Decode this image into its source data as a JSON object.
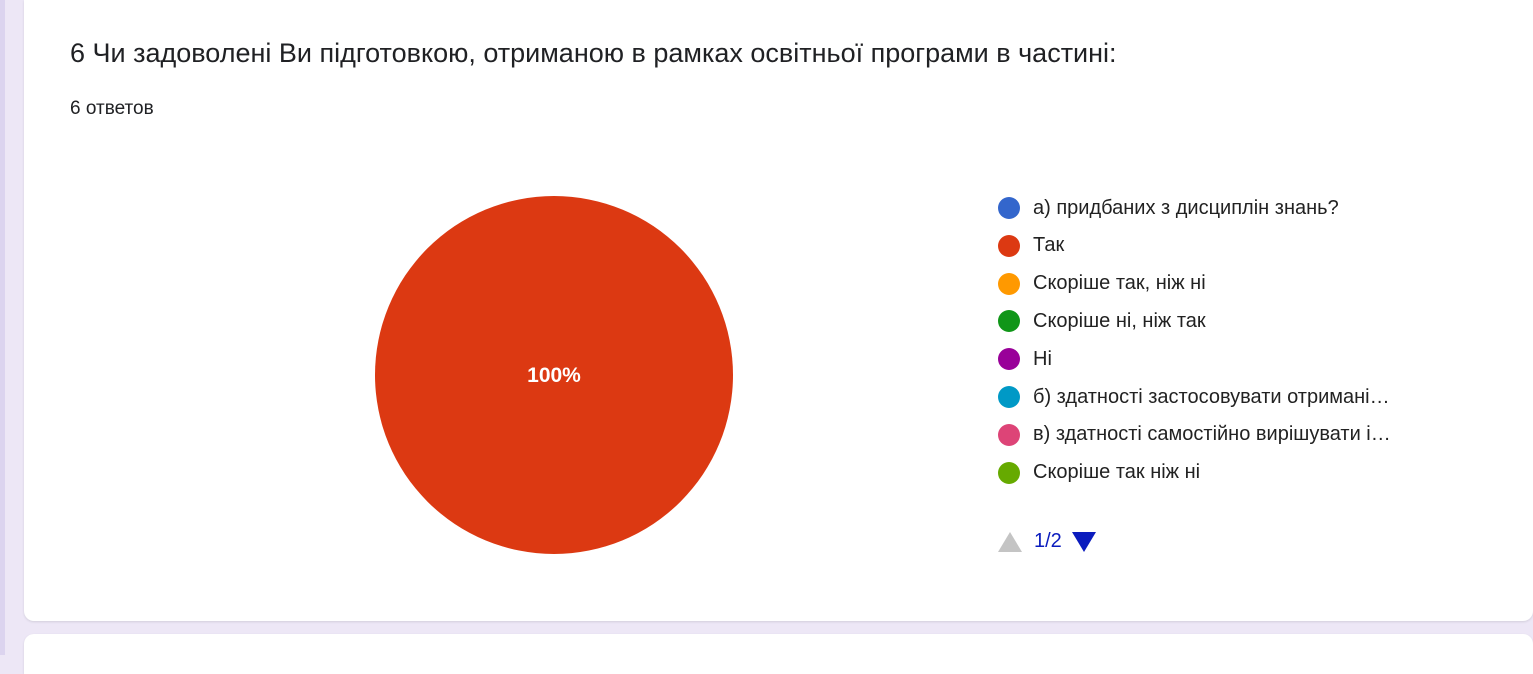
{
  "question": {
    "title": "6 Чи задоволені Ви підготовкою, отриманою в рамках освітньої програми в частині:",
    "response_count": "6 ответов"
  },
  "chart_data": {
    "type": "pie",
    "slices": [
      {
        "label": "а) придбаних з дисциплін знань?",
        "value": 0,
        "color": "#3366cc"
      },
      {
        "label": "Так",
        "value": 100,
        "color": "#dc3912"
      },
      {
        "label": "Скоріше так, ніж ні",
        "value": 0,
        "color": "#ff9900"
      },
      {
        "label": "Скоріше ні, ніж так",
        "value": 0,
        "color": "#109618"
      },
      {
        "label": "Ні",
        "value": 0,
        "color": "#990099"
      },
      {
        "label": "б) здатності застосовувати отримані…",
        "value": 0,
        "color": "#0099c6"
      },
      {
        "label": "в) здатності самостійно вирішувати і…",
        "value": 0,
        "color": "#dd4477"
      },
      {
        "label": "Скоріше так ніж ні",
        "value": 0,
        "color": "#66aa00"
      }
    ],
    "slice_labels": [
      "100%"
    ],
    "legend_position": "right"
  },
  "legend_pager": {
    "page": "1/2",
    "up_icon": "triangle-up-icon",
    "down_icon": "triangle-down-icon"
  },
  "colors": {
    "background": "#ede7f6",
    "card": "#ffffff",
    "pager_active": "#0b1cbe",
    "pager_inactive": "#c4c4c4"
  }
}
